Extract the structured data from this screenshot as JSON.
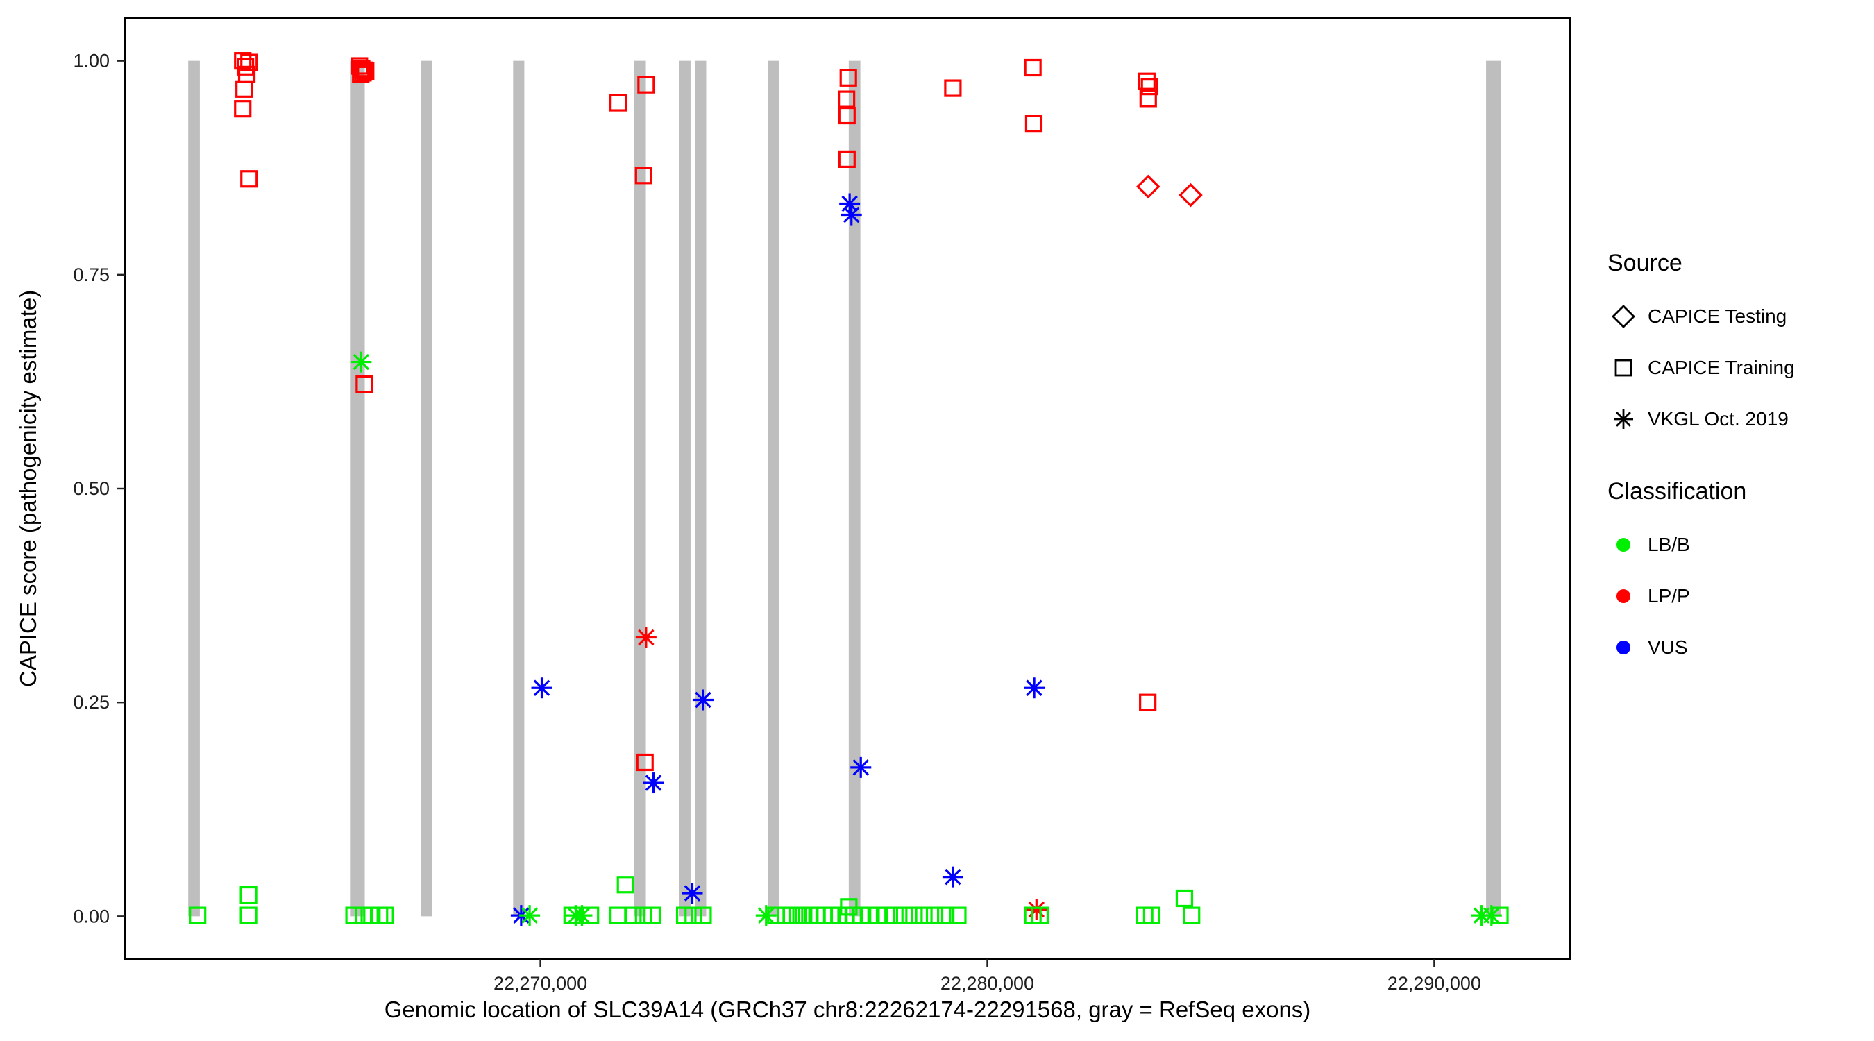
{
  "chart_data": {
    "type": "scatter",
    "title": "",
    "xlabel": "Genomic location of SLC39A14 (GRCh37 chr8:22262174-22291568, gray = RefSeq exons)",
    "ylabel": "CAPICE score (pathogenicity estimate)",
    "xlim": [
      22260704,
      22293038
    ],
    "ylim": [
      -0.05,
      1.05
    ],
    "grid": "off",
    "x_ticks": [
      {
        "value": 22270000,
        "label": "22,270,000"
      },
      {
        "value": 22280000,
        "label": "22,280,000"
      },
      {
        "value": 22290000,
        "label": "22,290,000"
      }
    ],
    "y_ticks": [
      {
        "value": 0.0,
        "label": "0.00"
      },
      {
        "value": 0.25,
        "label": "0.25"
      },
      {
        "value": 0.5,
        "label": "0.50"
      },
      {
        "value": 0.75,
        "label": "0.75"
      },
      {
        "value": 1.0,
        "label": "1.00"
      }
    ],
    "exon_color": "#BEBEBE",
    "exons": [
      {
        "start": 22262120,
        "end": 22262380
      },
      {
        "start": 22265740,
        "end": 22266070
      },
      {
        "start": 22267330,
        "end": 22267580
      },
      {
        "start": 22269390,
        "end": 22269640
      },
      {
        "start": 22272100,
        "end": 22272360
      },
      {
        "start": 22273110,
        "end": 22273360
      },
      {
        "start": 22273460,
        "end": 22273710
      },
      {
        "start": 22275090,
        "end": 22275340
      },
      {
        "start": 22276900,
        "end": 22277160
      },
      {
        "start": 22291160,
        "end": 22291500
      }
    ],
    "series": [
      {
        "name": "LP/P - CAPICE Training",
        "classification": "LP/P",
        "source": "CAPICE Training",
        "marker": "square",
        "color": "#FF0000",
        "points": [
          [
            22263340,
            1.0
          ],
          [
            22263480,
            0.998
          ],
          [
            22263400,
            0.993
          ],
          [
            22263430,
            0.984
          ],
          [
            22263370,
            0.967
          ],
          [
            22263340,
            0.944
          ],
          [
            22263480,
            0.862
          ],
          [
            22265950,
            0.994
          ],
          [
            22266000,
            0.991
          ],
          [
            22266050,
            0.989
          ],
          [
            22266090,
            0.988
          ],
          [
            22266030,
            0.986
          ],
          [
            22265980,
            0.984
          ],
          [
            22266060,
            0.622
          ],
          [
            22271740,
            0.951
          ],
          [
            22272365,
            0.972
          ],
          [
            22272310,
            0.866
          ],
          [
            22272340,
            0.18
          ],
          [
            22276890,
            0.98
          ],
          [
            22276850,
            0.955
          ],
          [
            22276860,
            0.936
          ],
          [
            22276860,
            0.885
          ],
          [
            22279230,
            0.968
          ],
          [
            22281020,
            0.992
          ],
          [
            22281040,
            0.927
          ],
          [
            22283570,
            0.976
          ],
          [
            22283630,
            0.97
          ],
          [
            22283600,
            0.956
          ],
          [
            22283590,
            0.25
          ]
        ]
      },
      {
        "name": "LP/P - CAPICE Testing",
        "classification": "LP/P",
        "source": "CAPICE Testing",
        "marker": "diamond",
        "color": "#FF0000",
        "points": [
          [
            22283600,
            0.853
          ],
          [
            22284550,
            0.843
          ]
        ]
      },
      {
        "name": "LP/P - VKGL Oct. 2019",
        "classification": "LP/P",
        "source": "VKGL Oct. 2019",
        "marker": "asterisk",
        "color": "#FF0000",
        "points": [
          [
            22272365,
            0.326
          ],
          [
            22281100,
            0.008
          ]
        ]
      },
      {
        "name": "VUS - VKGL Oct. 2019",
        "classification": "VUS",
        "source": "VKGL Oct. 2019",
        "marker": "asterisk",
        "color": "#0000FF",
        "points": [
          [
            22270030,
            0.267
          ],
          [
            22272530,
            0.156
          ],
          [
            22273640,
            0.253
          ],
          [
            22273400,
            0.027
          ],
          [
            22276920,
            0.833
          ],
          [
            22276960,
            0.82
          ],
          [
            22277170,
            0.174
          ],
          [
            22279230,
            0.046
          ],
          [
            22281050,
            0.267
          ],
          [
            22269570,
            0.001
          ]
        ]
      },
      {
        "name": "LB/B - VKGL Oct. 2019",
        "classification": "LB/B",
        "source": "VKGL Oct. 2019",
        "marker": "asterisk",
        "color": "#00EE00",
        "points": [
          [
            22265990,
            0.648
          ],
          [
            22269760,
            0.001
          ],
          [
            22270790,
            0.001
          ],
          [
            22270930,
            0.001
          ],
          [
            22275050,
            0.001
          ],
          [
            22291060,
            0.001
          ],
          [
            22291280,
            0.001
          ]
        ]
      },
      {
        "name": "LB/B - CAPICE Training",
        "classification": "LB/B",
        "source": "CAPICE Training",
        "marker": "square",
        "color": "#00EE00",
        "points": [
          [
            22262330,
            0.001
          ],
          [
            22263470,
            0.025
          ],
          [
            22263470,
            0.001
          ],
          [
            22265830,
            0.001
          ],
          [
            22266040,
            0.001
          ],
          [
            22266230,
            0.001
          ],
          [
            22266400,
            0.001
          ],
          [
            22266530,
            0.001
          ],
          [
            22270710,
            0.001
          ],
          [
            22271120,
            0.001
          ],
          [
            22271905,
            0.037
          ],
          [
            22271740,
            0.001
          ],
          [
            22272070,
            0.001
          ],
          [
            22272310,
            0.001
          ],
          [
            22272500,
            0.001
          ],
          [
            22273230,
            0.001
          ],
          [
            22273420,
            0.001
          ],
          [
            22273640,
            0.001
          ],
          [
            22275270,
            0.001
          ],
          [
            22275490,
            0.001
          ],
          [
            22275620,
            0.001
          ],
          [
            22275760,
            0.001
          ],
          [
            22275890,
            0.001
          ],
          [
            22276030,
            0.001
          ],
          [
            22276190,
            0.001
          ],
          [
            22276350,
            0.001
          ],
          [
            22276520,
            0.001
          ],
          [
            22276680,
            0.001
          ],
          [
            22276840,
            0.001
          ],
          [
            22277000,
            0.001
          ],
          [
            22277170,
            0.001
          ],
          [
            22277360,
            0.001
          ],
          [
            22277550,
            0.001
          ],
          [
            22277740,
            0.001
          ],
          [
            22277930,
            0.001
          ],
          [
            22278150,
            0.001
          ],
          [
            22278360,
            0.001
          ],
          [
            22278580,
            0.001
          ],
          [
            22278820,
            0.001
          ],
          [
            22279070,
            0.001
          ],
          [
            22279340,
            0.001
          ],
          [
            22276900,
            0.011
          ],
          [
            22281020,
            0.001
          ],
          [
            22281180,
            0.001
          ],
          [
            22283520,
            0.001
          ],
          [
            22283680,
            0.001
          ],
          [
            22284410,
            0.021
          ],
          [
            22284570,
            0.001
          ],
          [
            22291470,
            0.001
          ]
        ]
      }
    ]
  },
  "legend": {
    "source": {
      "title": "Source",
      "items": [
        {
          "label": "CAPICE Testing",
          "marker": "diamond",
          "color": "#000000"
        },
        {
          "label": "CAPICE Training",
          "marker": "square",
          "color": "#000000"
        },
        {
          "label": "VKGL Oct. 2019",
          "marker": "asterisk",
          "color": "#000000"
        }
      ]
    },
    "classification": {
      "title": "Classification",
      "items": [
        {
          "label": "LB/B",
          "marker": "circle",
          "color": "#00EE00"
        },
        {
          "label": "LP/P",
          "marker": "circle",
          "color": "#FF0000"
        },
        {
          "label": "VUS",
          "marker": "circle",
          "color": "#0000FF"
        }
      ]
    }
  }
}
